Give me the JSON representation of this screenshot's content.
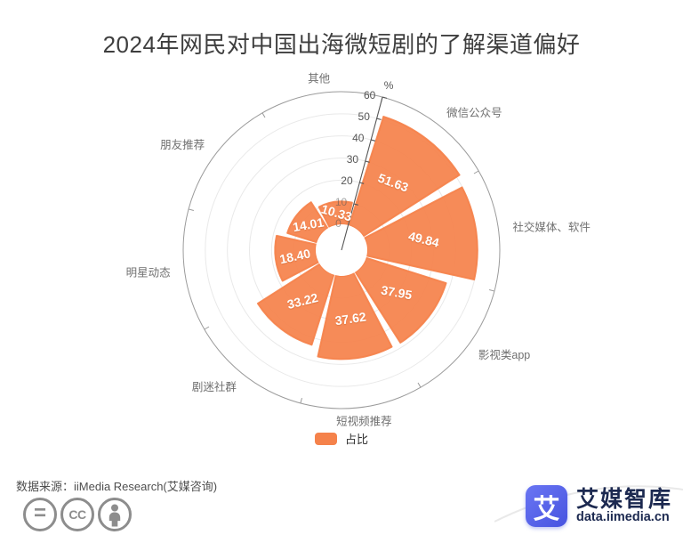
{
  "title": "2024年网民对中国出海微短剧的了解渠道偏好",
  "chart_data": {
    "type": "bar",
    "subtype": "polar-rose",
    "title": "2024年网民对中国出海微短剧的了解渠道偏好",
    "unit": "%",
    "categories": [
      "微信公众号",
      "社交媒体、软件",
      "影视类app",
      "短视频推荐",
      "剧迷社群",
      "明星动态",
      "朋友推荐",
      "其他"
    ],
    "values": [
      51.63,
      49.84,
      37.95,
      37.62,
      33.22,
      18.4,
      14.01,
      10.33
    ],
    "value_labels": [
      "51.63",
      "49.84",
      "37.95",
      "37.62",
      "33.22",
      "18.40",
      "14.01",
      "10.33"
    ],
    "series_name": "占比",
    "radial_ticks": [
      0,
      10,
      20,
      30,
      40,
      50,
      60
    ],
    "radial_max": 60,
    "grid": "on",
    "legend_position": "bottom",
    "colors": {
      "bar": "#f5824b",
      "grid_ring": "#e9e9e9",
      "outer_ring": "#9b9b9b",
      "axis": "#565656",
      "category_label": "#707070",
      "value_label": "#ffffff"
    }
  },
  "legend": {
    "label": "占比",
    "color": "#f5824b"
  },
  "source": {
    "label": "数据来源：iiMedia Research(艾媒咨询)"
  },
  "license_icons": {
    "equals": "=",
    "cc": "CC"
  },
  "logo": {
    "mark": "艾",
    "name": "艾媒智库",
    "domain": "data.iimedia.cn",
    "brand_color": "#5562ec",
    "text_color": "#1c2950"
  }
}
